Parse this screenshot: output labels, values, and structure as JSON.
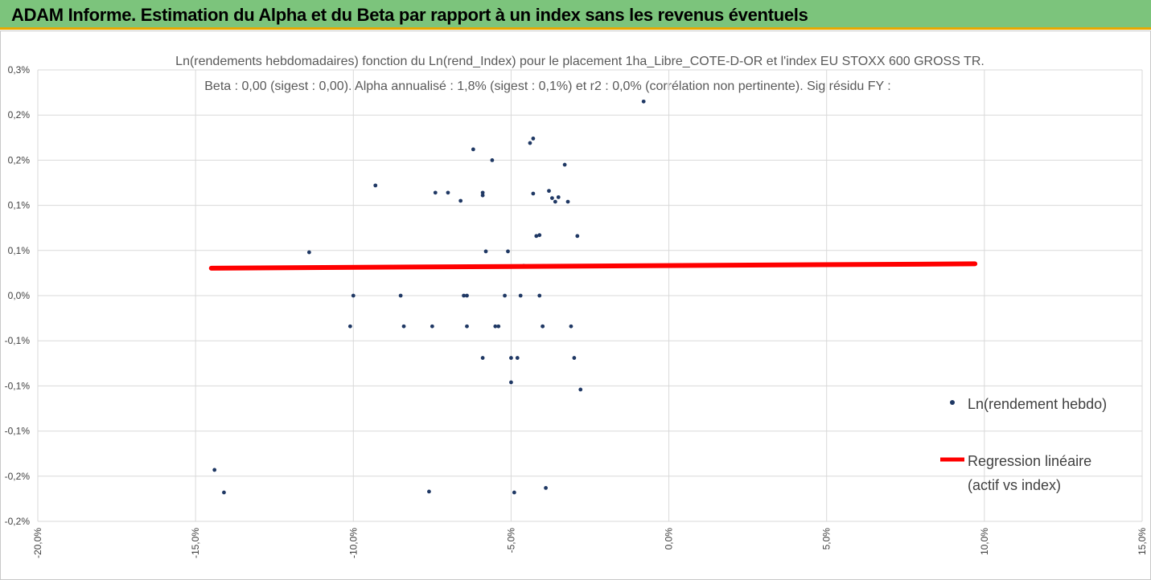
{
  "header": {
    "title": "ADAM Informe. Estimation du Alpha et du Beta par rapport à un index sans les revenus éventuels"
  },
  "colors": {
    "banner": "#7cc47c",
    "banner_accent": "#e8a800",
    "points": "#1f3864",
    "regression": "#ff0000",
    "grid": "#d9d9d9"
  },
  "chart_data": {
    "type": "scatter",
    "title_line1": "Ln(rendements hebdomadaires) fonction du Ln(rend_Index) pour le placement 1ha_Libre_COTE-D-OR et l'index EU STOXX 600 GROSS TR.",
    "title_line2": "Beta : 0,00 (sigest : 0,00). Alpha annualisé : 1,8% (sigest : 0,1%) et r2 : 0,0% (corrélation non pertinente). Sig résidu FY :",
    "x_ticks": [
      -0.2,
      -0.15,
      -0.1,
      -0.05,
      0.0,
      0.05,
      0.1,
      0.15
    ],
    "x_tick_labels": [
      "-20,0%",
      "-15,0%",
      "-10,0%",
      "-5,0%",
      "0,0%",
      "5,0%",
      "10,0%",
      "15,0%"
    ],
    "y_ticks": [
      -0.0025,
      -0.002,
      -0.0015,
      -0.001,
      -0.0005,
      0.0,
      0.0005,
      0.001,
      0.0015,
      0.002,
      0.0025
    ],
    "y_tick_labels": [
      "-0,2%",
      "-0,2%",
      "-0,1%",
      "-0,1%",
      "-0,1%",
      "0,0%",
      "0,1%",
      "0,1%",
      "0,2%",
      "0,2%",
      "0,3%"
    ],
    "xlim": [
      -0.2,
      0.15
    ],
    "ylim": [
      -0.0025,
      0.0025
    ],
    "grid": true,
    "legend_position": "right",
    "series": [
      {
        "name": "Ln(rendement hebdo)",
        "kind": "scatter",
        "points": [
          [
            -0.008,
            0.00215
          ],
          [
            -0.144,
            -0.00193
          ],
          [
            -0.141,
            -0.00218
          ],
          [
            -0.114,
            0.00048
          ],
          [
            -0.1,
            0.0
          ],
          [
            -0.101,
            -0.00034
          ],
          [
            -0.093,
            0.00122
          ],
          [
            -0.085,
            0.0
          ],
          [
            -0.084,
            -0.00034
          ],
          [
            -0.076,
            -0.00217
          ],
          [
            -0.074,
            0.00114
          ],
          [
            -0.075,
            -0.00034
          ],
          [
            -0.07,
            0.00114
          ],
          [
            -0.066,
            0.00105
          ],
          [
            -0.065,
            0.0
          ],
          [
            -0.064,
            0.0
          ],
          [
            -0.064,
            -0.00034
          ],
          [
            -0.062,
            0.00162
          ],
          [
            -0.059,
            0.00111
          ],
          [
            -0.059,
            0.00114
          ],
          [
            -0.058,
            0.00049
          ],
          [
            -0.059,
            -0.00069
          ],
          [
            -0.056,
            0.0015
          ],
          [
            -0.055,
            -0.00034
          ],
          [
            -0.054,
            -0.00034
          ],
          [
            -0.052,
            0.0
          ],
          [
            -0.051,
            0.00049
          ],
          [
            -0.05,
            -0.00069
          ],
          [
            -0.05,
            -0.00096
          ],
          [
            -0.049,
            -0.00218
          ],
          [
            -0.048,
            -0.00069
          ],
          [
            -0.047,
            0.0
          ],
          [
            -0.046,
            0.00033
          ],
          [
            -0.044,
            0.00169
          ],
          [
            -0.043,
            0.00174
          ],
          [
            -0.043,
            0.00113
          ],
          [
            -0.042,
            0.00066
          ],
          [
            -0.041,
            0.00067
          ],
          [
            -0.041,
            0.0
          ],
          [
            -0.04,
            -0.00034
          ],
          [
            -0.04,
            -0.00034
          ],
          [
            -0.039,
            -0.00213
          ],
          [
            -0.038,
            0.00116
          ],
          [
            -0.037,
            0.00108
          ],
          [
            -0.036,
            0.00104
          ],
          [
            -0.035,
            0.00109
          ],
          [
            -0.033,
            0.00145
          ],
          [
            -0.032,
            0.00104
          ],
          [
            -0.031,
            -0.00034
          ],
          [
            -0.03,
            -0.00069
          ],
          [
            -0.029,
            0.00066
          ],
          [
            -0.028,
            -0.00104
          ]
        ]
      },
      {
        "name": "Regression linéaire\n(actif vs index)",
        "legend_line1": "Regression linéaire",
        "legend_line2": "(actif vs index)",
        "kind": "line",
        "x": [
          -0.145,
          0.097
        ],
        "y": [
          0.000304,
          0.000352
        ]
      }
    ]
  }
}
